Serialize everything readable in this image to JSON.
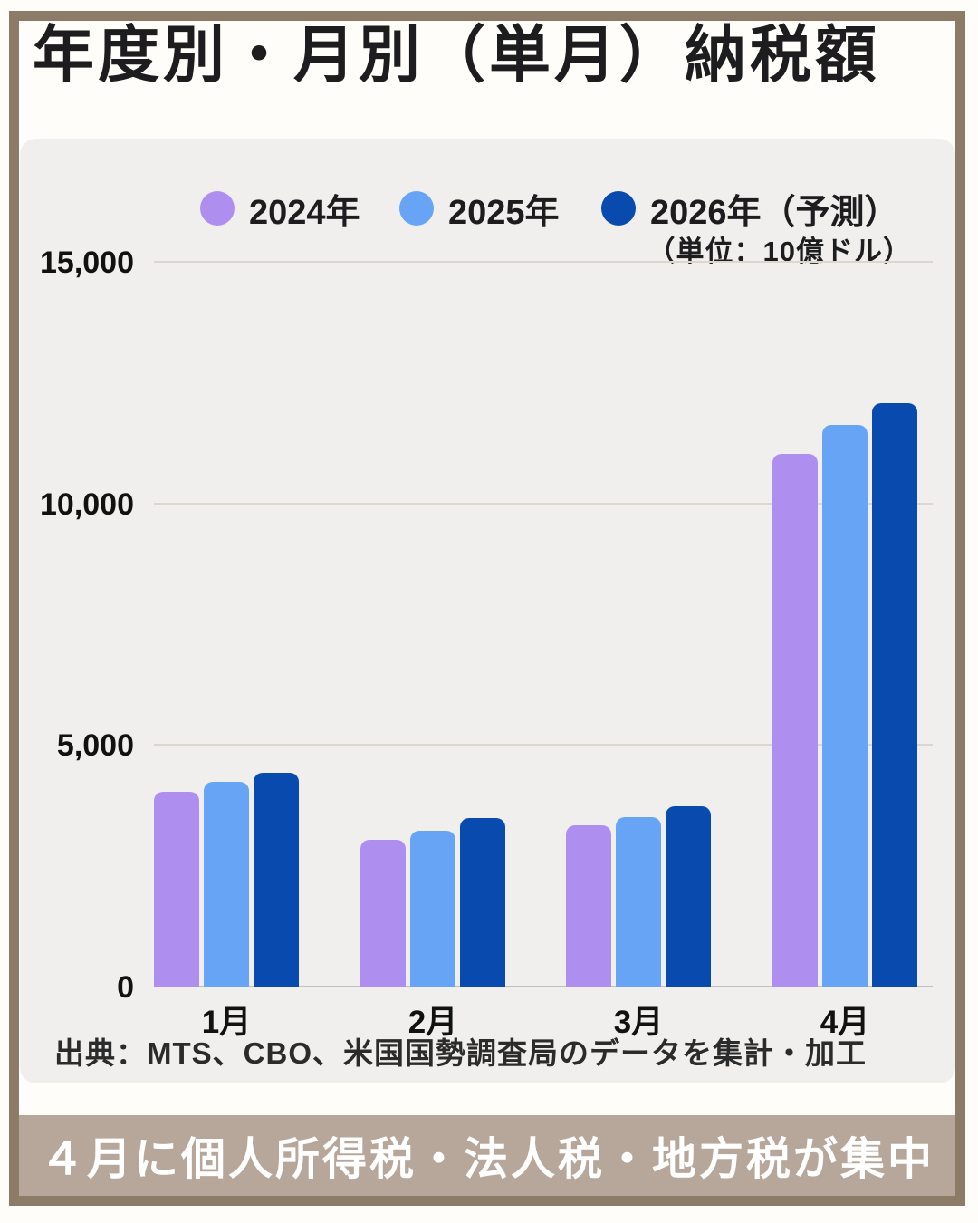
{
  "page": {
    "title": "年度別・月別（単月）納税額",
    "source": "出典：MTS、CBO、米国国勢調査局のデータを集計・加工",
    "banner": "４月に個人所得税・法人税・地方税が集中"
  },
  "colors": {
    "frame": "#8b7b67",
    "banner_bg": "#b6a79a",
    "banner_text": "#ffffff",
    "panel_bg": "#f0efed",
    "page_bg": "#fffdf9",
    "title_text": "#1d1d1f",
    "gridline": "#dcd6cf",
    "axis_line": "#c3bfb9",
    "series_2024": "#ae8ff0",
    "series_2025": "#67a4f6",
    "series_2026": "#084aad"
  },
  "chart_data": {
    "type": "bar",
    "title": "年度別・月別（単月）納税額",
    "categories": [
      "1月",
      "2月",
      "3月",
      "4月"
    ],
    "series": [
      {
        "name": "2024年",
        "color": "#ae8ff0",
        "values": [
          4050,
          3050,
          3350,
          11050
        ]
      },
      {
        "name": "2025年",
        "color": "#67a4f6",
        "values": [
          4250,
          3240,
          3520,
          11650
        ]
      },
      {
        "name": "2026年（予測）",
        "color": "#084aad",
        "values": [
          4450,
          3500,
          3760,
          12100
        ]
      }
    ],
    "unit_note": "（単位：10億ドル）",
    "xlabel": "",
    "ylabel": "",
    "ylim": [
      0,
      15000
    ],
    "yticks": [
      0,
      5000,
      10000,
      15000
    ],
    "ytick_labels": [
      "0",
      "5,000",
      "10,000",
      "15,000"
    ],
    "grid": true,
    "legend_position": "top"
  }
}
